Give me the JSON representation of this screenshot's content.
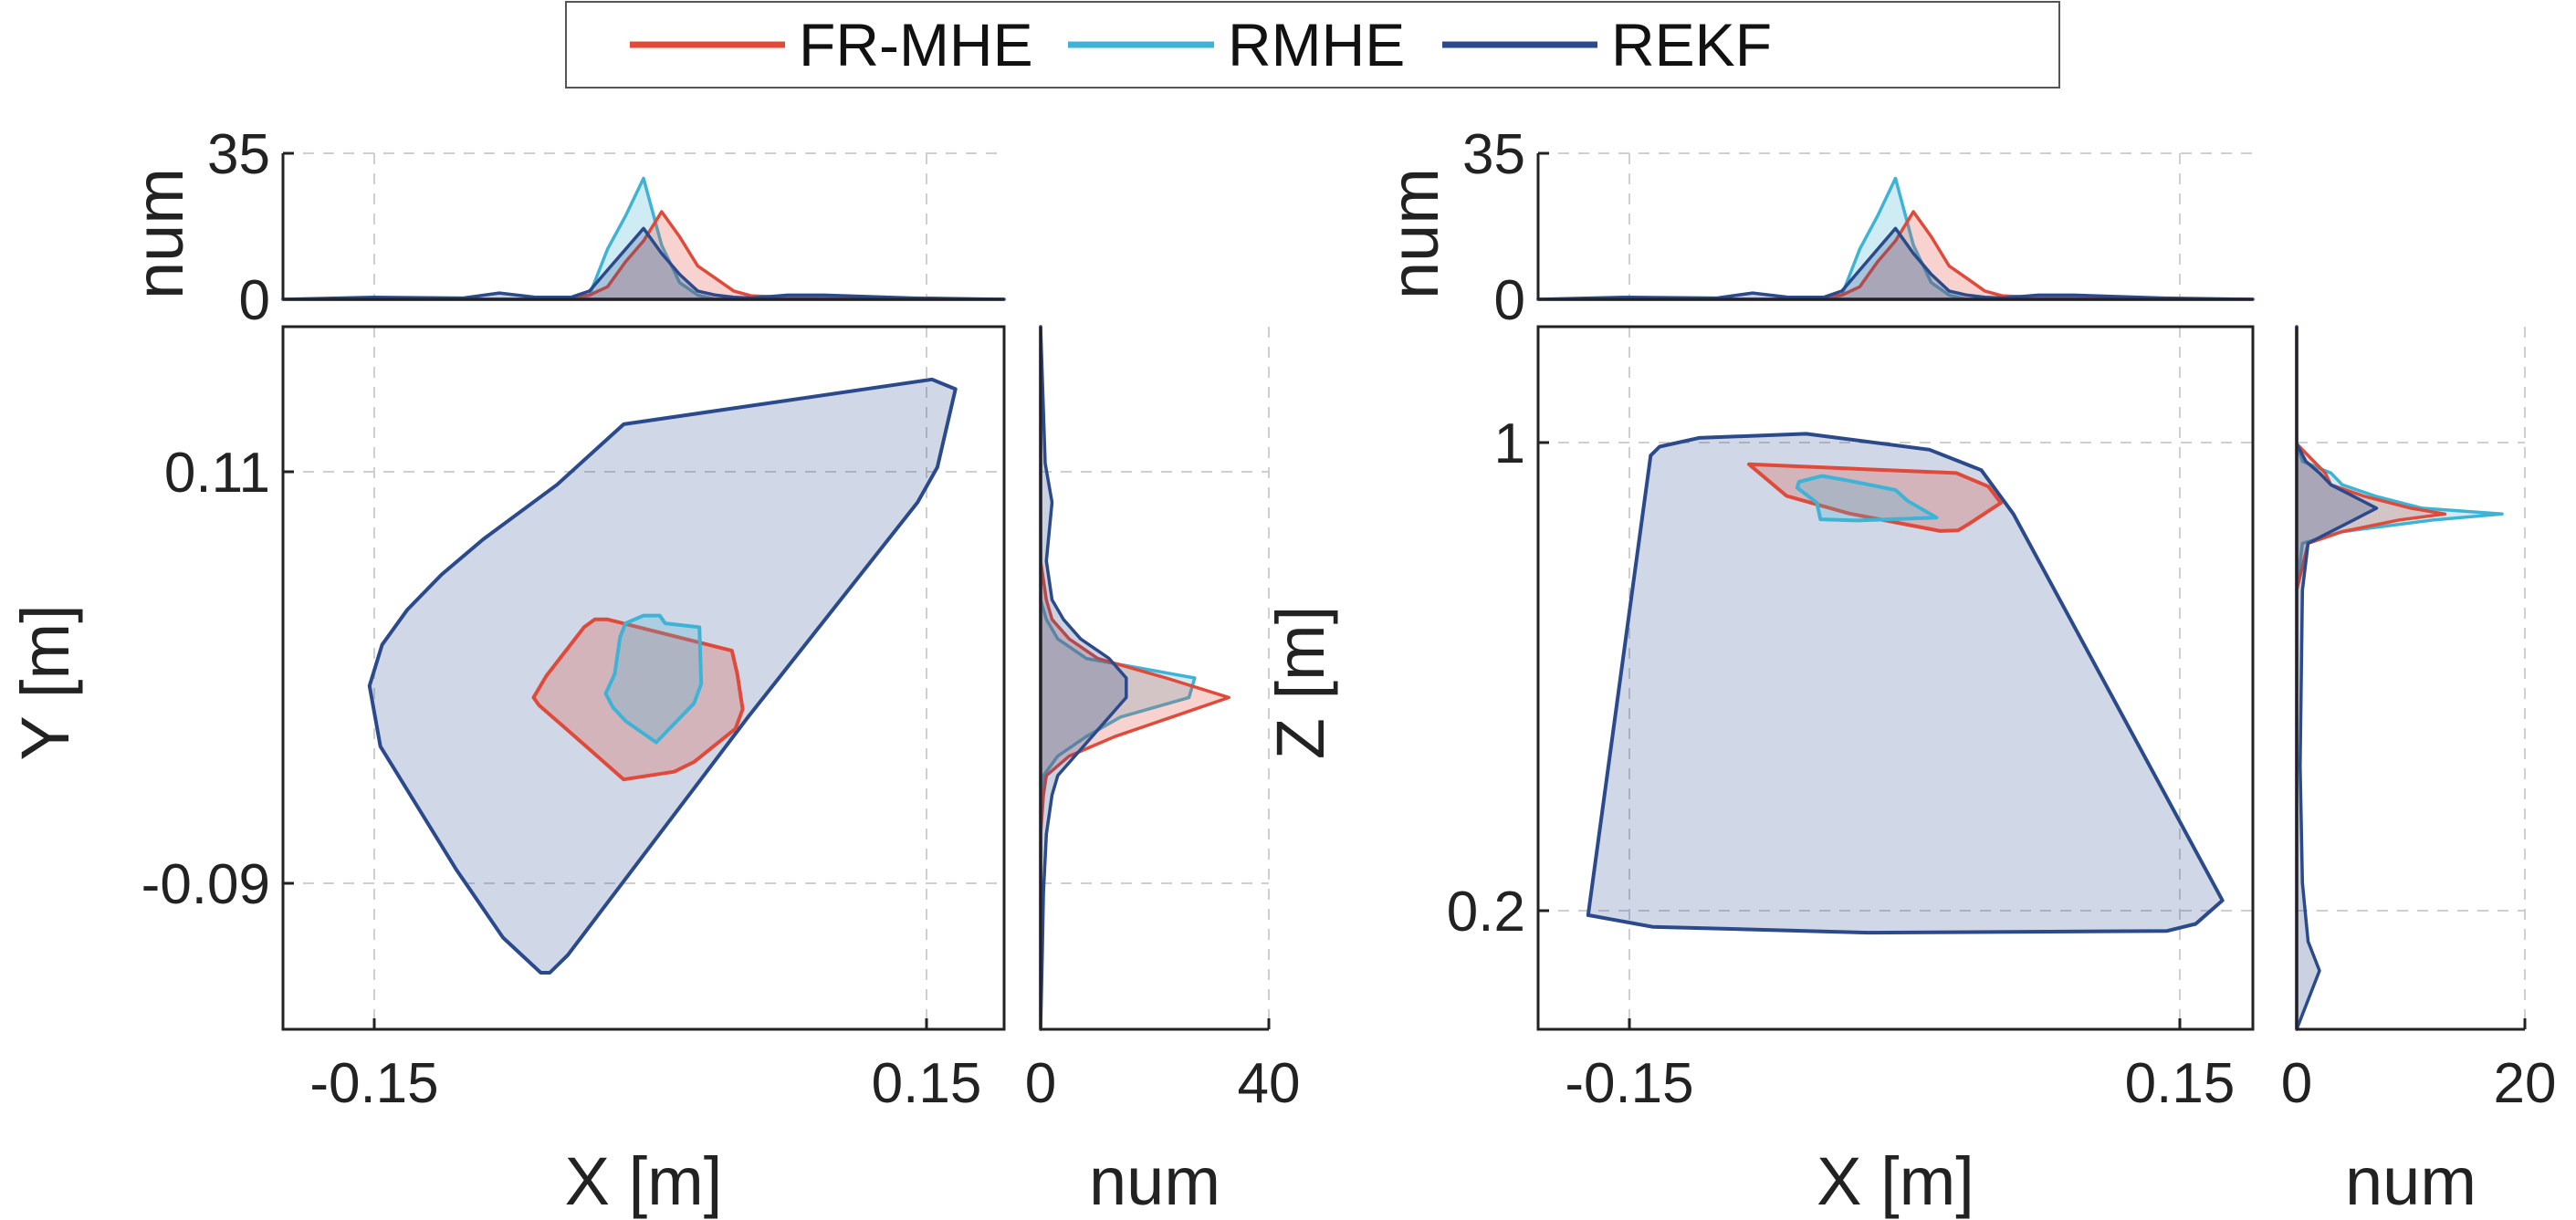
{
  "colors": {
    "FR-MHE": "#e04a3a",
    "RMHE": "#3fb3d6",
    "REKF": "#2b4a8c"
  },
  "legend": {
    "items": [
      "FR-MHE",
      "RMHE",
      "REKF"
    ],
    "placement": "top-center"
  },
  "chart_data": [
    {
      "type": "area",
      "xlabel": "X [m]",
      "ylabel": "Y [m]",
      "xticks": [
        "-0.15",
        "0.15"
      ],
      "yticks": [
        "0.11",
        "-0.09"
      ],
      "xlim": [
        -0.2,
        0.2
      ],
      "ylim": [
        -0.16,
        0.2
      ],
      "grid": true,
      "series": [
        {
          "name": "REKF",
          "hull": [
            [
              0.16,
              0.173
            ],
            [
              0.173,
              0.168
            ],
            [
              0.163,
              0.128
            ],
            [
              0.152,
              0.11
            ],
            [
              0.058,
              0.0
            ],
            [
              -0.042,
              -0.122
            ],
            [
              -0.052,
              -0.131
            ],
            [
              -0.057,
              -0.131
            ],
            [
              -0.078,
              -0.113
            ],
            [
              -0.104,
              -0.078
            ],
            [
              -0.146,
              -0.015
            ],
            [
              -0.152,
              0.016
            ],
            [
              -0.145,
              0.037
            ],
            [
              -0.131,
              0.055
            ],
            [
              -0.112,
              0.073
            ],
            [
              -0.089,
              0.091
            ],
            [
              -0.048,
              0.119
            ],
            [
              -0.011,
              0.15
            ]
          ]
        },
        {
          "name": "FR-MHE",
          "hull": [
            [
              0.049,
              0.034
            ],
            [
              0.052,
              0.022
            ],
            [
              0.055,
              0.004
            ],
            [
              0.051,
              -0.006
            ],
            [
              0.028,
              -0.023
            ],
            [
              0.017,
              -0.028
            ],
            [
              -0.011,
              -0.032
            ],
            [
              -0.043,
              -0.006
            ],
            [
              -0.058,
              0.006
            ],
            [
              -0.061,
              0.01
            ],
            [
              -0.054,
              0.021
            ],
            [
              -0.033,
              0.046
            ],
            [
              -0.027,
              0.05
            ],
            [
              -0.02,
              0.05
            ]
          ]
        },
        {
          "name": "RMHE",
          "hull": [
            [
              0.009,
              0.052
            ],
            [
              0.0,
              0.052
            ],
            [
              -0.01,
              0.048
            ],
            [
              -0.013,
              0.041
            ],
            [
              -0.016,
              0.022
            ],
            [
              -0.021,
              0.012
            ],
            [
              -0.017,
              0.005
            ],
            [
              -0.01,
              -0.002
            ],
            [
              0.007,
              -0.013
            ],
            [
              0.028,
              0.007
            ],
            [
              0.032,
              0.017
            ],
            [
              0.031,
              0.046
            ],
            [
              0.012,
              0.048
            ]
          ]
        }
      ],
      "top_marginal": {
        "ylabel": "num",
        "yticks": [
          "35",
          "0"
        ],
        "ylim": [
          0,
          35
        ],
        "x": [
          -0.2,
          -0.15,
          -0.1,
          -0.08,
          -0.06,
          -0.04,
          -0.03,
          -0.02,
          -0.01,
          0.0,
          0.01,
          0.02,
          0.03,
          0.04,
          0.05,
          0.06,
          0.08,
          0.1,
          0.15,
          0.2
        ],
        "series": [
          {
            "name": "FR-MHE",
            "values": [
              0,
              0,
              0,
              0,
              0,
              0.5,
              1,
              3,
              9,
              14,
              21,
              15,
              8,
              5,
              2,
              0.8,
              0.5,
              0.3,
              0,
              0
            ]
          },
          {
            "name": "RMHE",
            "values": [
              0,
              0,
              0,
              0,
              0,
              0,
              1,
              12,
              20,
              29,
              13,
              4,
              1,
              0,
              0,
              0,
              0,
              0,
              0,
              0
            ]
          },
          {
            "name": "REKF",
            "values": [
              0,
              0.5,
              0.3,
              1.5,
              0.5,
              0.5,
              2,
              7,
              12,
              17,
              11,
              6,
              2,
              1,
              0.5,
              0.3,
              1,
              1,
              0.3,
              0
            ]
          }
        ]
      },
      "right_marginal": {
        "xlabel": "num",
        "xticks": [
          "0",
          "40"
        ],
        "xlim": [
          0,
          40
        ],
        "y": [
          0.2,
          0.13,
          0.11,
          0.08,
          0.06,
          0.05,
          0.04,
          0.03,
          0.02,
          0.01,
          0.0,
          -0.01,
          -0.02,
          -0.03,
          -0.04,
          -0.06,
          -0.09,
          -0.12,
          -0.16
        ],
        "series": [
          {
            "name": "FR-MHE",
            "values": [
              0,
              0,
              0,
              0,
              1,
              2,
              5,
              10,
              22,
              33,
              23,
              13,
              5,
              1,
              0.5,
              0,
              0,
              0,
              0
            ]
          },
          {
            "name": "RMHE",
            "values": [
              0,
              0,
              0,
              0,
              0,
              1,
              3,
              8,
              27,
              26,
              14,
              8,
              3,
              0.5,
              0,
              0,
              0,
              0,
              0
            ]
          },
          {
            "name": "REKF",
            "values": [
              0,
              0.8,
              2,
              1,
              2,
              4,
              7,
              12,
              15,
              15,
              12,
              9,
              6,
              3,
              2,
              1,
              0.5,
              0.3,
              0
            ]
          }
        ]
      }
    },
    {
      "type": "area",
      "xlabel": "X [m]",
      "ylabel": "Z [m]",
      "xticks": [
        "-0.15",
        "0.15"
      ],
      "yticks": [
        "1",
        "0.2"
      ],
      "xlim": [
        -0.2,
        0.2
      ],
      "ylim": [
        0.05,
        1.25
      ],
      "grid": true,
      "series": [
        {
          "name": "REKF",
          "hull": [
            [
              0.019,
              1.04
            ],
            [
              0.048,
              1.005
            ],
            [
              0.066,
              0.93
            ],
            [
              0.183,
              0.27
            ],
            [
              0.168,
              0.23
            ],
            [
              0.152,
              0.218
            ],
            [
              -0.015,
              0.215
            ],
            [
              -0.136,
              0.225
            ],
            [
              -0.172,
              0.245
            ],
            [
              -0.137,
              1.03
            ],
            [
              -0.132,
              1.045
            ],
            [
              -0.11,
              1.06
            ],
            [
              -0.05,
              1.067
            ]
          ]
        },
        {
          "name": "FR-MHE",
          "hull": [
            [
              -0.082,
              1.015
            ],
            [
              0.034,
              1.0
            ],
            [
              0.052,
              0.977
            ],
            [
              0.059,
              0.949
            ],
            [
              0.041,
              0.913
            ],
            [
              0.035,
              0.902
            ],
            [
              0.025,
              0.901
            ],
            [
              -0.026,
              0.931
            ],
            [
              -0.061,
              0.961
            ]
          ]
        },
        {
          "name": "RMHE",
          "hull": [
            [
              -0.041,
              0.995
            ],
            [
              -0.026,
              0.987
            ],
            [
              0.0,
              0.971
            ],
            [
              0.007,
              0.952
            ],
            [
              0.023,
              0.924
            ],
            [
              -0.021,
              0.919
            ],
            [
              -0.042,
              0.921
            ],
            [
              -0.044,
              0.949
            ],
            [
              -0.055,
              0.975
            ],
            [
              -0.054,
              0.985
            ]
          ]
        }
      ],
      "top_marginal": {
        "ylabel": "num",
        "yticks": [
          "35",
          "0"
        ],
        "ylim": [
          0,
          35
        ],
        "x": [
          -0.2,
          -0.15,
          -0.1,
          -0.08,
          -0.06,
          -0.04,
          -0.03,
          -0.02,
          -0.01,
          0.0,
          0.01,
          0.02,
          0.03,
          0.04,
          0.05,
          0.06,
          0.08,
          0.1,
          0.15,
          0.2
        ],
        "series": [
          {
            "name": "FR-MHE",
            "values": [
              0,
              0,
              0,
              0,
              0,
              0.5,
              1,
              3,
              9,
              14,
              21,
              15,
              8,
              5,
              2,
              0.8,
              0.5,
              0.3,
              0,
              0
            ]
          },
          {
            "name": "RMHE",
            "values": [
              0,
              0,
              0,
              0,
              0,
              0,
              1,
              12,
              20,
              29,
              13,
              4,
              1,
              0,
              0,
              0,
              0,
              0,
              0,
              0
            ]
          },
          {
            "name": "REKF",
            "values": [
              0,
              0.5,
              0.3,
              1.5,
              0.5,
              0.5,
              2,
              7,
              12,
              17,
              11,
              6,
              2,
              1,
              0.5,
              0.3,
              1,
              1,
              0.3,
              0
            ]
          }
        ]
      },
      "right_marginal": {
        "xlabel": "num",
        "xticks": [
          "0",
          "20"
        ],
        "xlim": [
          0,
          20
        ],
        "y": [
          1.25,
          1.05,
          1.02,
          1.0,
          0.98,
          0.96,
          0.94,
          0.93,
          0.92,
          0.9,
          0.88,
          0.8,
          0.5,
          0.3,
          0.2,
          0.15,
          0.1,
          0.05
        ],
        "series": [
          {
            "name": "FR-MHE",
            "values": [
              0,
              0,
              1.5,
              2.5,
              3,
              6,
              10,
              13,
              9,
              4,
              1,
              0,
              0,
              0,
              0,
              0,
              0,
              0
            ]
          },
          {
            "name": "RMHE",
            "values": [
              0,
              0,
              0.5,
              3,
              4,
              7,
              11,
              18,
              12,
              4,
              0.5,
              0,
              0,
              0,
              0,
              0,
              0,
              0
            ]
          },
          {
            "name": "REKF",
            "values": [
              0,
              0,
              0.8,
              2,
              3,
              5,
              7,
              6,
              5,
              3,
              1,
              0.5,
              0.3,
              0.5,
              1,
              2,
              1,
              0
            ]
          }
        ]
      }
    }
  ]
}
